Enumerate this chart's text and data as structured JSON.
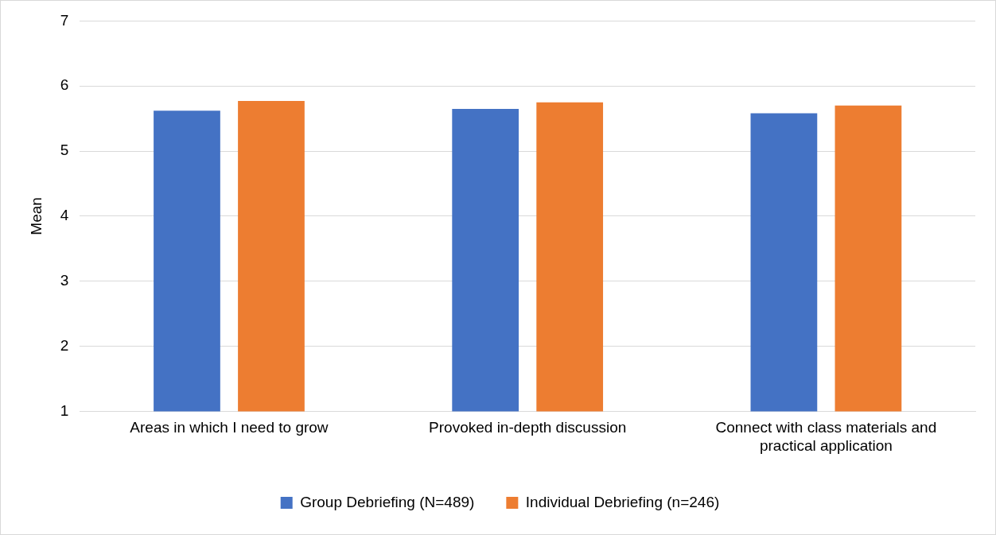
{
  "chart_data": {
    "type": "bar",
    "ylabel": "Mean",
    "categories": [
      "Areas in which I need to grow",
      "Provoked in-depth discussion",
      "Connect with class materials and practical application"
    ],
    "series": [
      {
        "name": "Group Debriefing (N=489)",
        "color": "#4472c4",
        "values": [
          5.62,
          5.65,
          5.58
        ]
      },
      {
        "name": "Individual Debriefing (n=246)",
        "color": "#ed7d31",
        "values": [
          5.77,
          5.75,
          5.7
        ]
      }
    ],
    "ylim": [
      1,
      7
    ],
    "yticks": [
      1,
      2,
      3,
      4,
      5,
      6,
      7
    ],
    "grid": "y",
    "legend": "bottom"
  }
}
